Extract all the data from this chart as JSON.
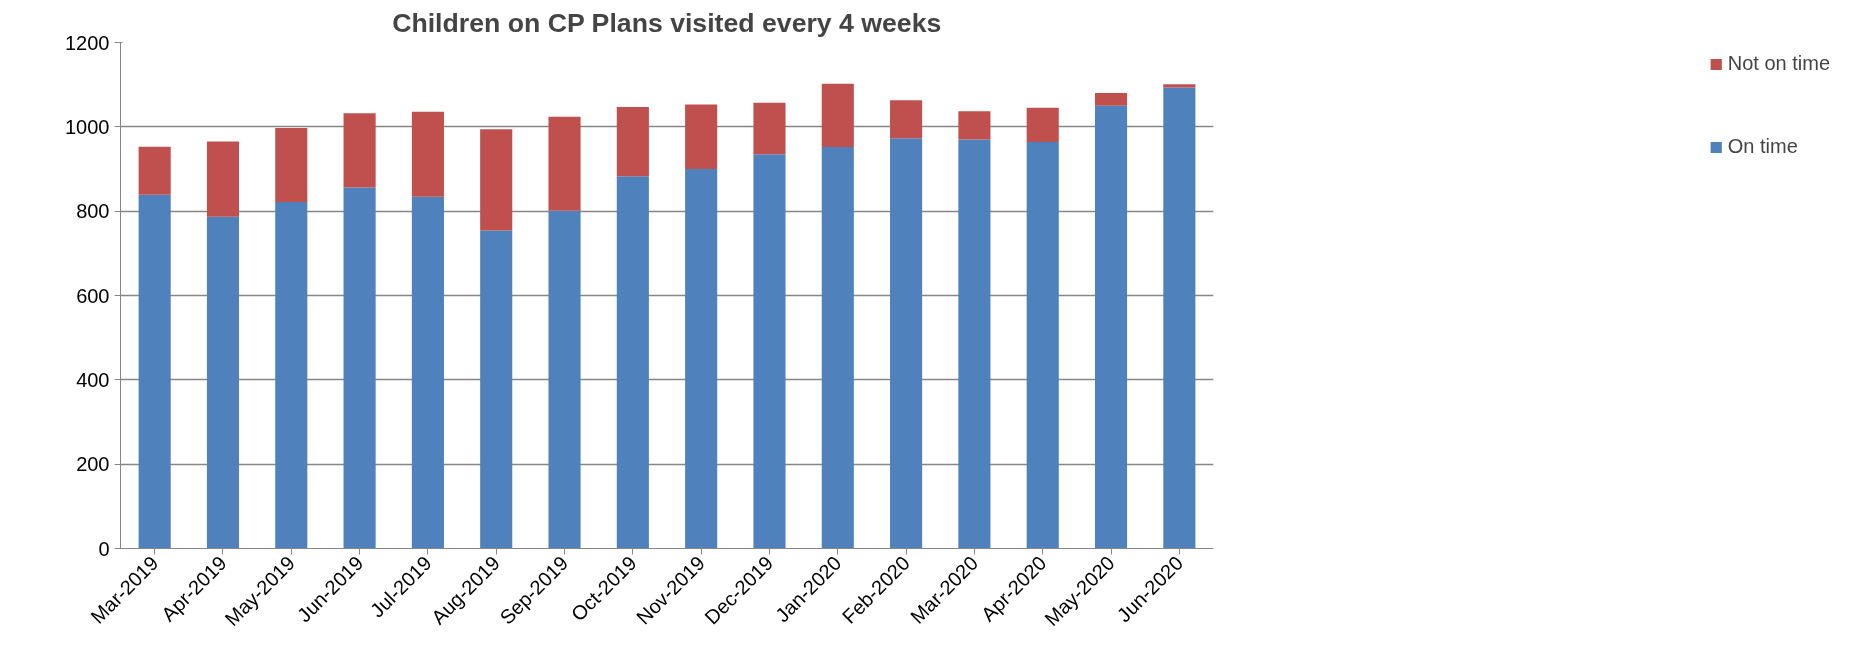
{
  "chart_data": {
    "type": "bar",
    "title": "Children on CP Plans visited every 4 weeks",
    "categories": [
      "Mar-2019",
      "Apr-2019",
      "May-2019",
      "Jun-2019",
      "Jul-2019",
      "Aug-2019",
      "Sep-2019",
      "Oct-2019",
      "Nov-2019",
      "Dec-2019",
      "Jan-2020",
      "Feb-2020",
      "Mar-2020",
      "Apr-2020",
      "May-2020",
      "Jun-2020"
    ],
    "series": [
      {
        "name": "On time",
        "color": "#4f81bd",
        "values": [
          839,
          787,
          822,
          856,
          834,
          754,
          801,
          883,
          900,
          935,
          952,
          973,
          970,
          964,
          1050,
          1093
        ]
      },
      {
        "name": "Not on time",
        "color": "#c0504d",
        "values": [
          114,
          178,
          175,
          176,
          202,
          240,
          223,
          164,
          153,
          122,
          150,
          90,
          67,
          81,
          30,
          8
        ]
      }
    ],
    "stacked": true,
    "ylim": [
      0,
      1200
    ],
    "yticks": [
      0,
      200,
      400,
      600,
      800,
      1000,
      1200
    ],
    "grid": "y",
    "legend": "right"
  }
}
